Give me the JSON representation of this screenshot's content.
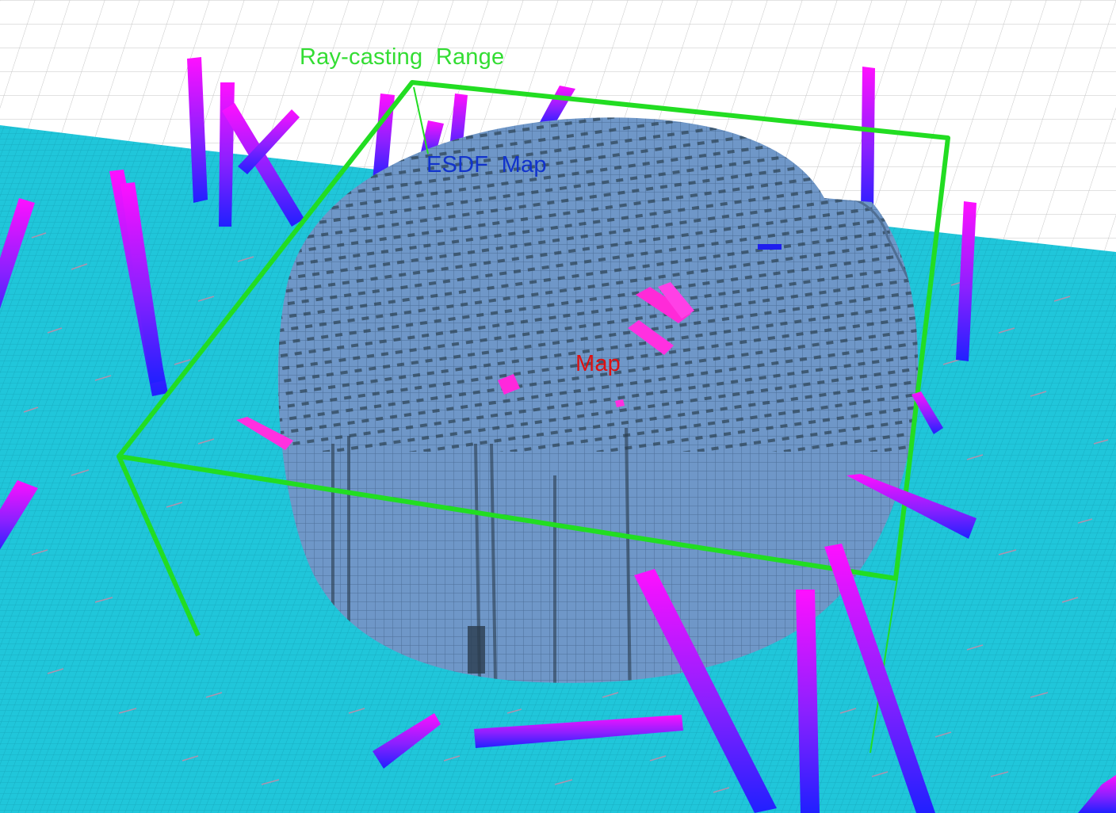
{
  "scene": {
    "labels": {
      "raycasting_range": "Ray-casting  Range",
      "esdf_map": "ESDF  Map",
      "map": "Map"
    },
    "colors": {
      "background": "#ffffff",
      "grid_line": "#c8c8c8",
      "floor_voxels": "#1ec8dc",
      "floor_voxel_accent": "#c87890",
      "map_voxels": "#6e96c8",
      "map_voxel_shadow": "#2a3a4a",
      "obstacle_top": "#ff00ff",
      "obstacle_bottom": "#2020ff",
      "range_box": "#22dd22",
      "label_raycasting": "#33dd33",
      "label_esdf": "#1133cc",
      "label_map": "#dd1111"
    }
  }
}
